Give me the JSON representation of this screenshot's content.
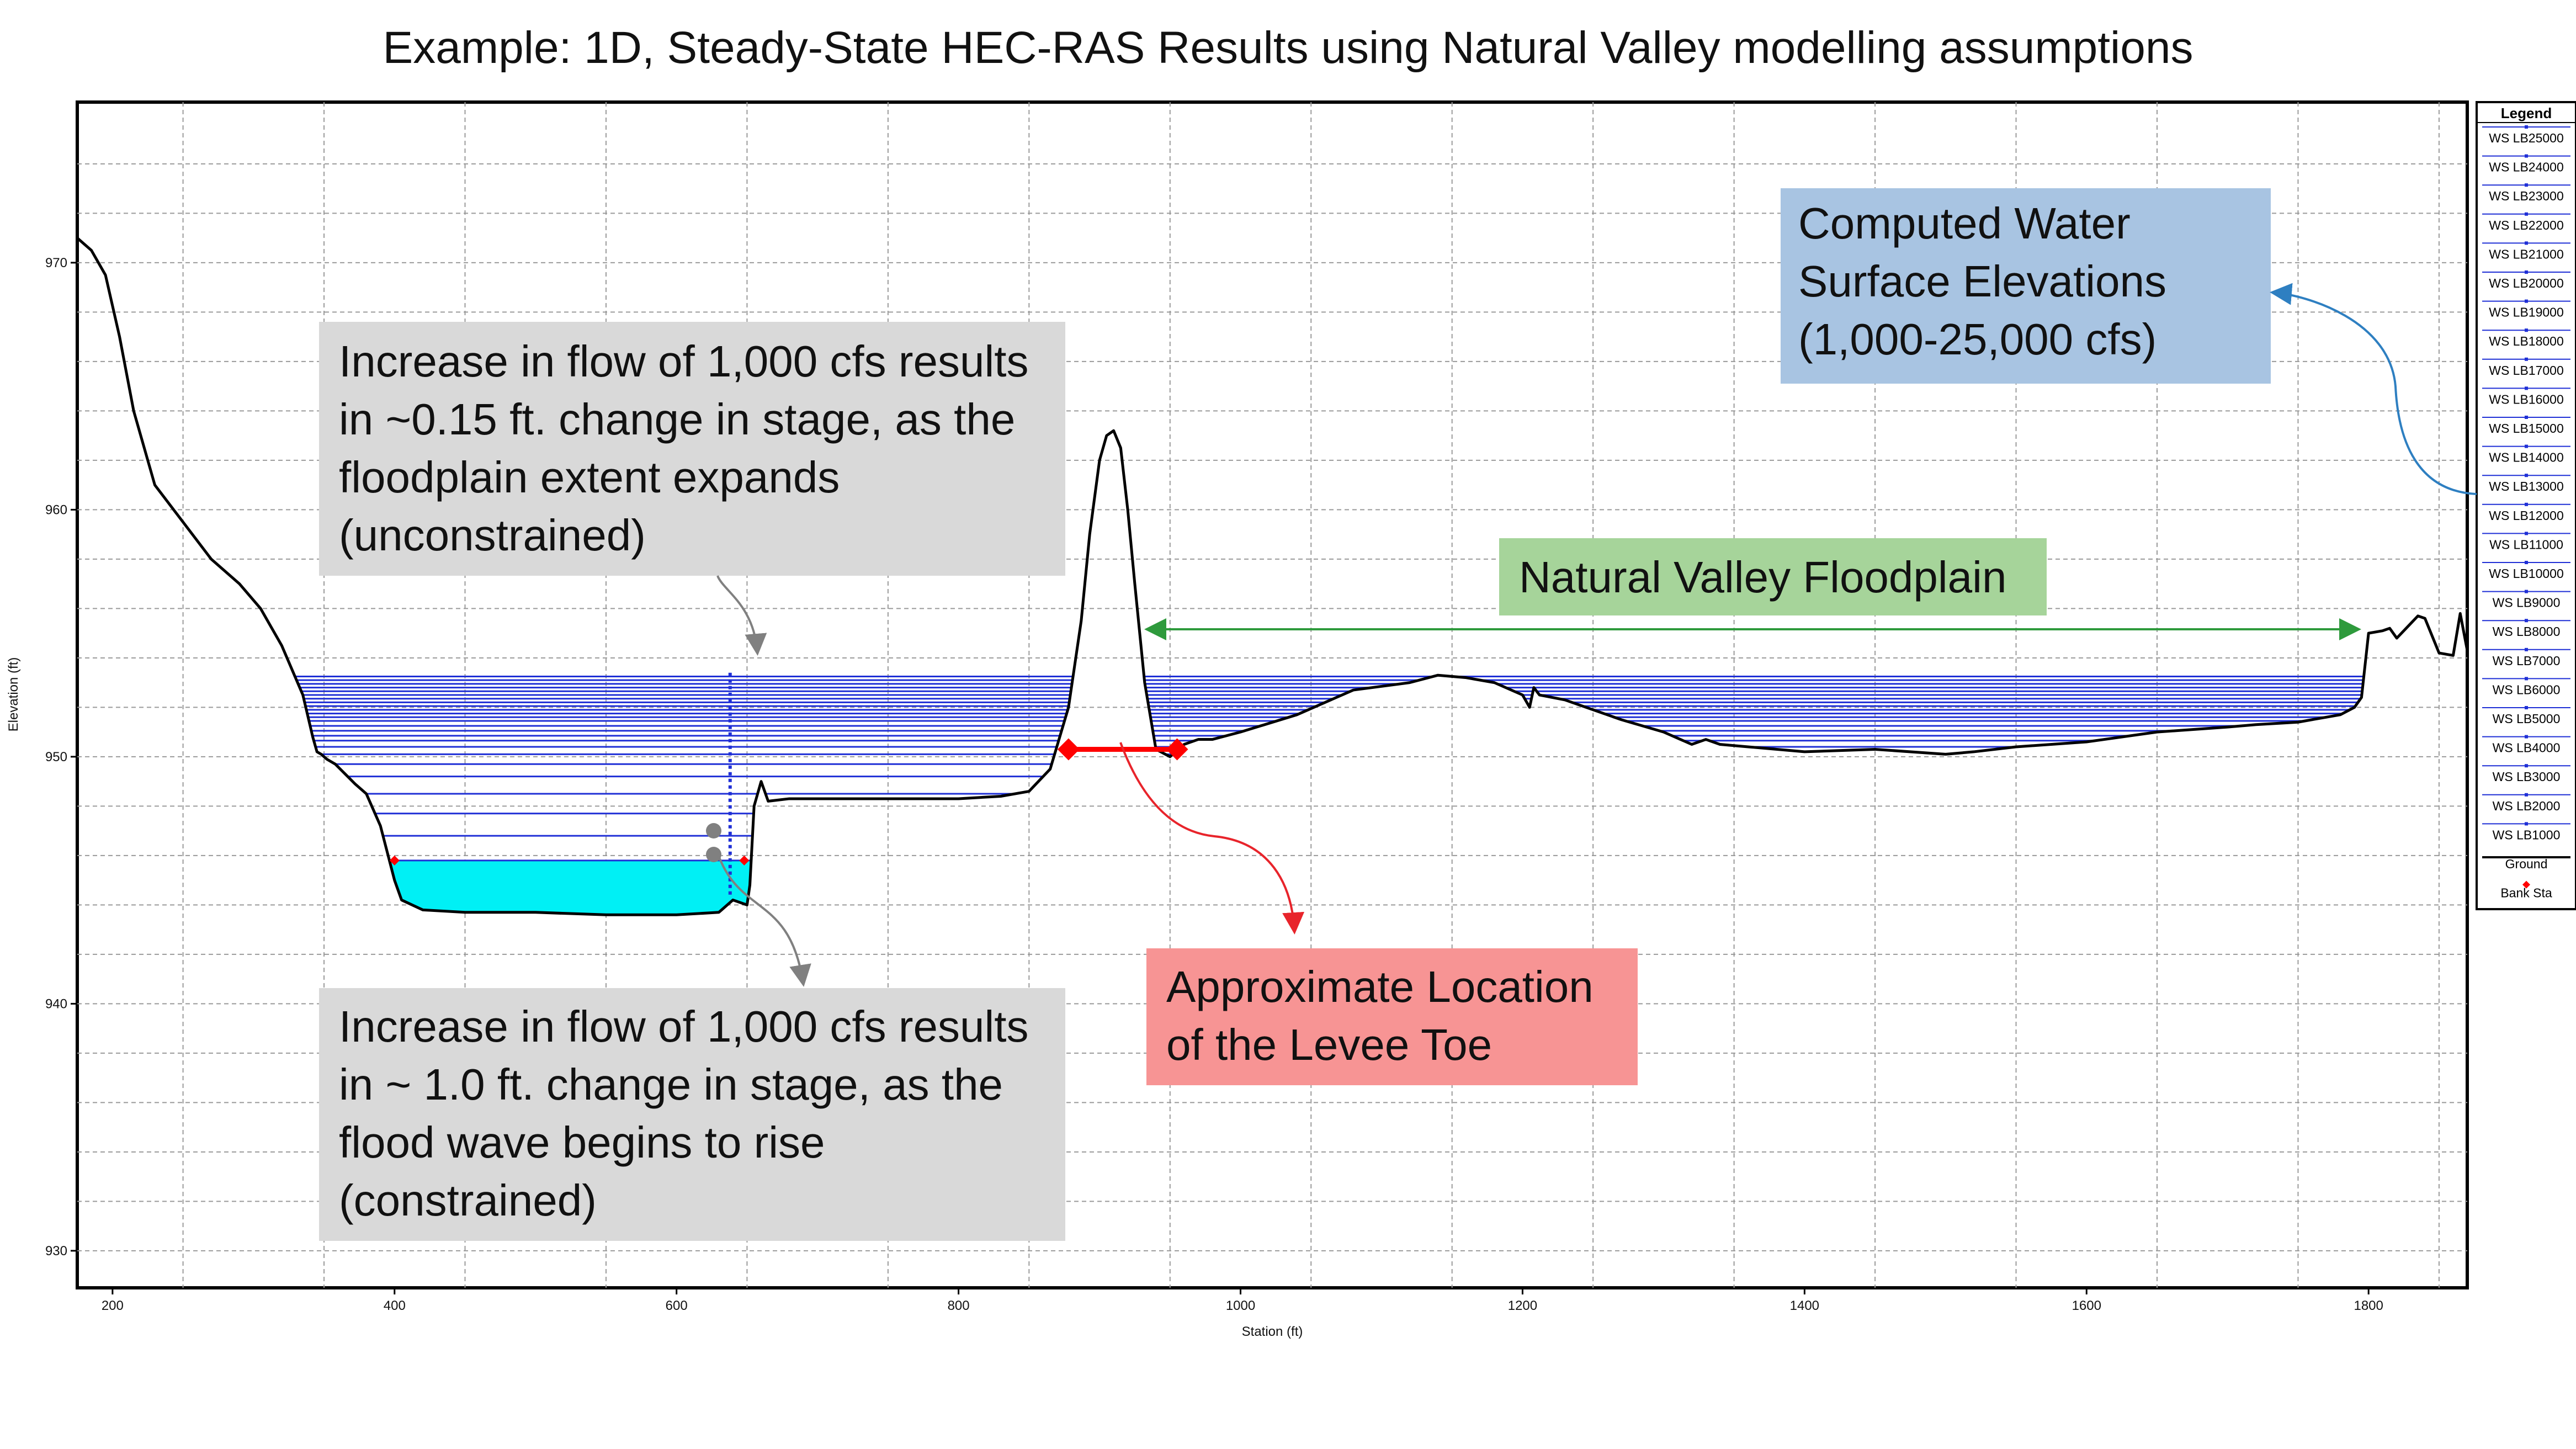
{
  "page": {
    "title": "Example: 1D, Steady-State HEC-RAS Results using Natural Valley modelling assumptions"
  },
  "annotations": {
    "computed_ws": [
      "Computed Water",
      "Surface Elevations",
      "(1,000-25,000 cfs)"
    ],
    "unconstrained": [
      "Increase in flow of 1,000 cfs results",
      "in ~0.15 ft. change in stage, as the",
      "floodplain extent expands",
      "(unconstrained)"
    ],
    "constrained": [
      "Increase in flow of 1,000 cfs results",
      "in ~ 1.0 ft. change in stage, as the",
      "flood wave begins to rise",
      "(constrained)"
    ],
    "levee_toe": [
      "Approximate Location",
      "of the Levee Toe"
    ],
    "floodplain": "Natural Valley Floodplain"
  },
  "colors": {
    "ws_line": "#1f2fd6",
    "ground": "#000000",
    "bank": "#ff0000",
    "water_fill": "#00f0f5",
    "computed_box": "#a8c4e2",
    "grey_box": "#d9d9d9",
    "red_box": "#f79494",
    "green_box": "#a6d49a",
    "green_arrow": "#2e9a3c",
    "blue_arrow": "#2e7fc1",
    "red_arrow": "#e8242b"
  },
  "chart_data": {
    "type": "line",
    "xlabel": "Station (ft)",
    "ylabel": "Elevation (ft)",
    "xlim": [
      175,
      1870
    ],
    "ylim": [
      928.5,
      976.5
    ],
    "x_ticks": [
      200,
      400,
      600,
      800,
      1000,
      1200,
      1400,
      1600,
      1800
    ],
    "y_ticks": [
      930,
      940,
      950,
      960,
      970
    ],
    "grid": true,
    "legend_position": "right",
    "legend_title": "Legend",
    "legend": [
      "WS LB25000",
      "WS LB24000",
      "WS LB23000",
      "WS LB22000",
      "WS LB21000",
      "WS LB20000",
      "WS LB19000",
      "WS LB18000",
      "WS LB17000",
      "WS LB16000",
      "WS LB15000",
      "WS LB14000",
      "WS LB13000",
      "WS LB12000",
      "WS LB11000",
      "WS LB10000",
      "WS LB9000",
      "WS LB8000",
      "WS LB7000",
      "WS LB6000",
      "WS LB5000",
      "WS LB4000",
      "WS LB3000",
      "WS LB2000",
      "WS LB1000",
      "Ground",
      "Bank Sta"
    ],
    "ground": {
      "x": [
        175,
        185,
        195,
        205,
        215,
        230,
        250,
        270,
        290,
        305,
        320,
        335,
        342,
        345,
        348,
        352,
        358,
        365,
        372,
        380,
        390,
        400,
        405,
        420,
        450,
        500,
        550,
        600,
        630,
        640,
        650,
        652,
        655,
        660,
        665,
        680,
        700,
        750,
        800,
        830,
        850,
        865,
        878,
        887,
        893,
        900,
        905,
        910,
        915,
        920,
        925,
        932,
        940,
        950,
        960,
        970,
        980,
        1000,
        1040,
        1080,
        1120,
        1140,
        1160,
        1180,
        1200,
        1205,
        1208,
        1212,
        1230,
        1270,
        1300,
        1320,
        1330,
        1340,
        1360,
        1400,
        1450,
        1500,
        1520,
        1550,
        1600,
        1650,
        1700,
        1720,
        1750,
        1780,
        1790,
        1795,
        1800,
        1810,
        1815,
        1820,
        1830,
        1835,
        1840,
        1850,
        1860,
        1865,
        1870
      ],
      "y": [
        971,
        970.5,
        969.5,
        967,
        964,
        961,
        959.5,
        958,
        957,
        956,
        954.5,
        952.5,
        950.8,
        950.2,
        950.1,
        949.9,
        949.7,
        949.3,
        948.9,
        948.5,
        947.2,
        945,
        944.2,
        943.8,
        943.7,
        943.7,
        943.6,
        943.6,
        943.7,
        944.2,
        944,
        944.8,
        948,
        949,
        948.2,
        948.3,
        948.3,
        948.3,
        948.3,
        948.4,
        948.6,
        949.5,
        952,
        955.5,
        959,
        962,
        963,
        963.2,
        962.5,
        960,
        957,
        953,
        950.3,
        950,
        950.5,
        950.7,
        950.7,
        951,
        951.7,
        952.7,
        953,
        953.3,
        953.2,
        953,
        952.5,
        952,
        952.8,
        952.5,
        952.3,
        951.5,
        951,
        950.5,
        950.7,
        950.5,
        950.4,
        950.2,
        950.3,
        950.1,
        950.2,
        950.4,
        950.6,
        951,
        951.2,
        951.3,
        951.4,
        951.7,
        952,
        952.4,
        955,
        955.1,
        955.2,
        954.8,
        955.4,
        955.7,
        955.6,
        954.2,
        954.1,
        955.8,
        954.3
      ]
    },
    "water_surface": {
      "profiles": [
        "WS LB1000",
        "WS LB2000",
        "WS LB3000",
        "WS LB4000",
        "WS LB5000",
        "WS LB6000",
        "WS LB7000",
        "WS LB8000",
        "WS LB9000",
        "WS LB10000",
        "WS LB11000",
        "WS LB12000",
        "WS LB13000",
        "WS LB14000",
        "WS LB15000",
        "WS LB16000",
        "WS LB17000",
        "WS LB18000",
        "WS LB19000",
        "WS LB20000",
        "WS LB21000",
        "WS LB22000",
        "WS LB23000",
        "WS LB24000",
        "WS LB25000"
      ],
      "elevations": [
        945.8,
        946.8,
        947.7,
        948.5,
        949.2,
        949.7,
        950.1,
        950.4,
        950.65,
        950.85,
        951.05,
        951.25,
        951.45,
        951.6,
        951.75,
        951.9,
        952.05,
        952.2,
        952.35,
        952.5,
        952.65,
        952.8,
        952.95,
        953.1,
        953.25
      ]
    },
    "bank_stations": [
      {
        "x": 400,
        "y": 945.8
      },
      {
        "x": 648,
        "y": 945.8
      },
      {
        "x": 878,
        "y": 950.3
      },
      {
        "x": 955,
        "y": 950.3
      }
    ]
  }
}
